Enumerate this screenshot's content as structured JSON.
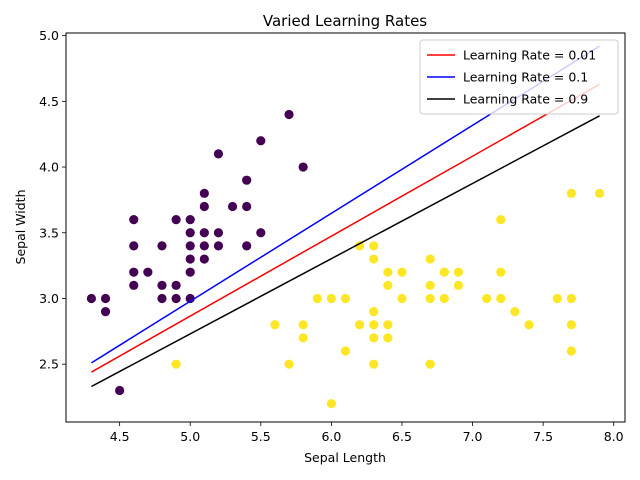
{
  "chart_data": {
    "type": "scatter",
    "title": "Varied Learning Rates",
    "xlabel": "Sepal Length",
    "ylabel": "Sepal Width",
    "xlim": [
      4.12,
      8.08
    ],
    "ylim": [
      2.06,
      5.02
    ],
    "grid": false,
    "legend_position": "top-right",
    "x_ticks": [
      "4.5",
      "5.0",
      "5.5",
      "6.0",
      "6.5",
      "7.0",
      "7.5",
      "8.0"
    ],
    "y_ticks": [
      "2.5",
      "3.0",
      "3.5",
      "4.0",
      "4.5",
      "5.0"
    ],
    "scatter_series": [
      {
        "class": "dark",
        "color": "#440154",
        "points": [
          [
            4.3,
            3.0
          ],
          [
            4.4,
            3.0
          ],
          [
            4.4,
            2.9
          ],
          [
            4.5,
            2.3
          ],
          [
            4.6,
            3.6
          ],
          [
            4.6,
            3.4
          ],
          [
            4.6,
            3.2
          ],
          [
            4.6,
            3.1
          ],
          [
            4.7,
            3.2
          ],
          [
            4.8,
            3.4
          ],
          [
            4.8,
            3.1
          ],
          [
            4.8,
            3.0
          ],
          [
            4.9,
            3.6
          ],
          [
            4.9,
            3.1
          ],
          [
            4.9,
            3.0
          ],
          [
            5.0,
            3.6
          ],
          [
            5.0,
            3.5
          ],
          [
            5.0,
            3.4
          ],
          [
            5.0,
            3.3
          ],
          [
            5.0,
            3.2
          ],
          [
            5.0,
            3.0
          ],
          [
            5.1,
            3.8
          ],
          [
            5.1,
            3.7
          ],
          [
            5.1,
            3.5
          ],
          [
            5.1,
            3.4
          ],
          [
            5.1,
            3.3
          ],
          [
            5.2,
            4.1
          ],
          [
            5.2,
            3.5
          ],
          [
            5.2,
            3.4
          ],
          [
            5.3,
            3.7
          ],
          [
            5.4,
            3.9
          ],
          [
            5.4,
            3.7
          ],
          [
            5.4,
            3.4
          ],
          [
            5.5,
            4.2
          ],
          [
            5.5,
            3.5
          ],
          [
            5.7,
            4.4
          ],
          [
            5.8,
            4.0
          ]
        ]
      },
      {
        "class": "light",
        "color": "#fde725",
        "points": [
          [
            4.9,
            2.5
          ],
          [
            5.6,
            2.8
          ],
          [
            5.7,
            2.5
          ],
          [
            5.8,
            2.8
          ],
          [
            5.8,
            2.7
          ],
          [
            5.9,
            3.0
          ],
          [
            6.0,
            3.0
          ],
          [
            6.0,
            2.2
          ],
          [
            6.1,
            3.0
          ],
          [
            6.1,
            2.6
          ],
          [
            6.2,
            3.4
          ],
          [
            6.2,
            2.8
          ],
          [
            6.3,
            3.4
          ],
          [
            6.3,
            3.3
          ],
          [
            6.3,
            2.9
          ],
          [
            6.3,
            2.8
          ],
          [
            6.3,
            2.7
          ],
          [
            6.3,
            2.5
          ],
          [
            6.4,
            3.2
          ],
          [
            6.4,
            3.1
          ],
          [
            6.4,
            2.8
          ],
          [
            6.4,
            2.7
          ],
          [
            6.5,
            3.2
          ],
          [
            6.5,
            3.0
          ],
          [
            6.7,
            3.3
          ],
          [
            6.7,
            3.1
          ],
          [
            6.7,
            3.0
          ],
          [
            6.7,
            2.5
          ],
          [
            6.8,
            3.2
          ],
          [
            6.8,
            3.0
          ],
          [
            6.9,
            3.2
          ],
          [
            6.9,
            3.1
          ],
          [
            7.1,
            3.0
          ],
          [
            7.2,
            3.6
          ],
          [
            7.2,
            3.2
          ],
          [
            7.2,
            3.0
          ],
          [
            7.3,
            2.9
          ],
          [
            7.4,
            2.8
          ],
          [
            7.6,
            3.0
          ],
          [
            7.7,
            3.8
          ],
          [
            7.7,
            3.0
          ],
          [
            7.7,
            2.8
          ],
          [
            7.7,
            2.6
          ],
          [
            7.9,
            3.8
          ]
        ]
      }
    ],
    "line_series": [
      {
        "name": "Learning Rate = 0.01",
        "color": "#ff0000",
        "x": [
          4.3,
          7.9
        ],
        "y": [
          2.44,
          4.63
        ]
      },
      {
        "name": "Learning Rate = 0.1",
        "color": "#0000ff",
        "x": [
          4.3,
          7.9
        ],
        "y": [
          2.51,
          4.92
        ]
      },
      {
        "name": "Learning Rate = 0.9",
        "color": "#000000",
        "x": [
          4.3,
          7.9
        ],
        "y": [
          2.33,
          4.39
        ]
      }
    ]
  }
}
